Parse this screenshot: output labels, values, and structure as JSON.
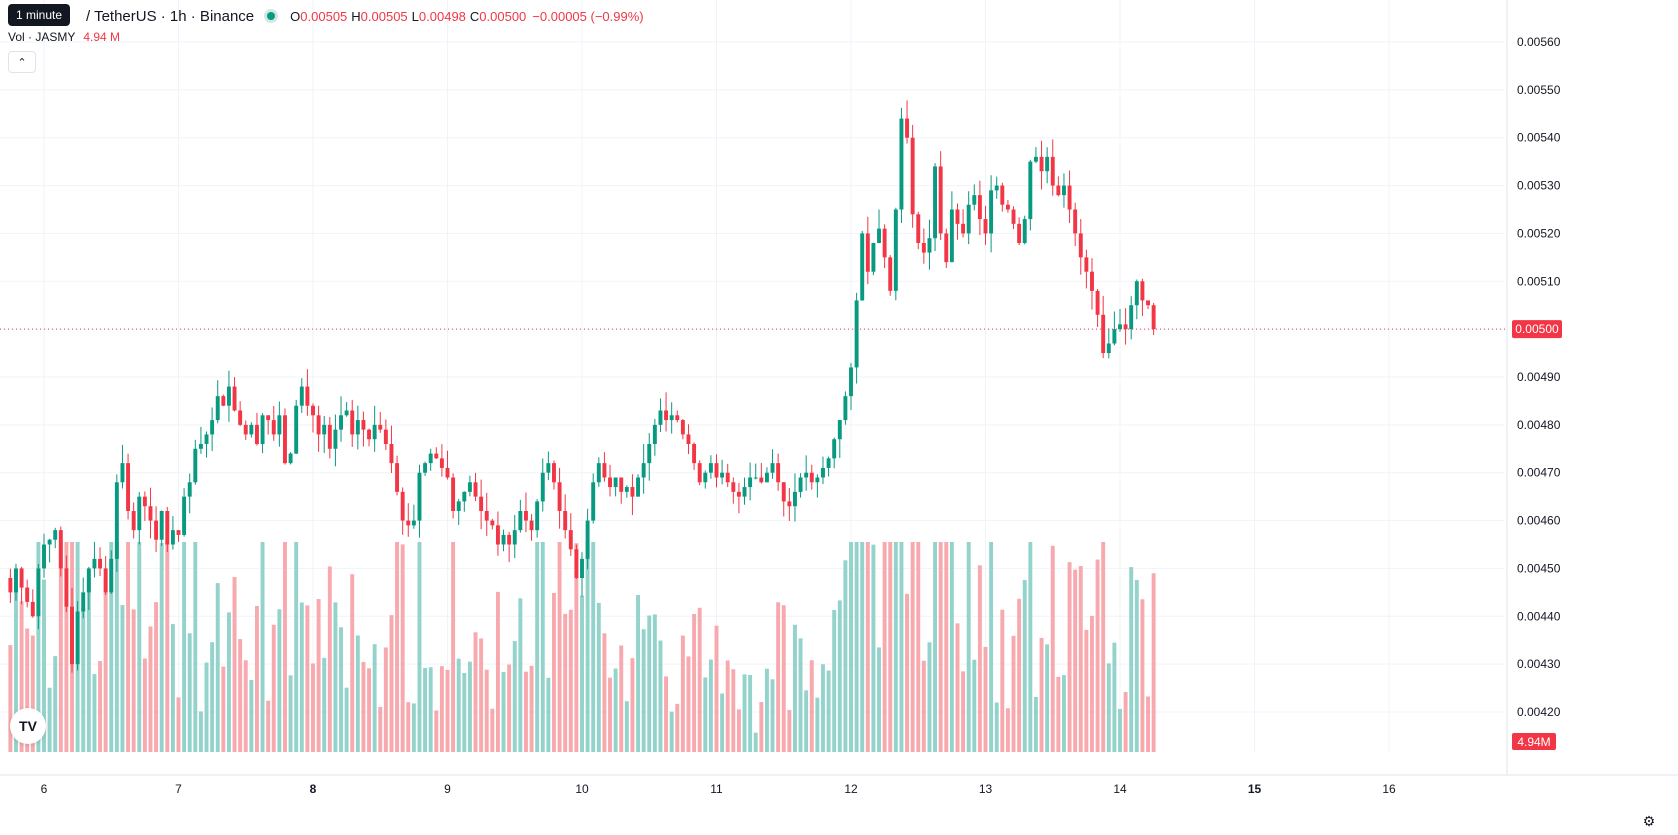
{
  "header": {
    "tooltip": "1 minute",
    "symbol": "/ TetherUS · 1h · Binance",
    "ohlc": {
      "o_label": "O",
      "o": "0.00505",
      "h_label": "H",
      "h": "0.00505",
      "l_label": "L",
      "l": "0.00498",
      "c_label": "C",
      "c": "0.00500"
    },
    "change": "−0.00005 (−0.99%)"
  },
  "volume_legend": {
    "label": "Vol · JASMY",
    "value": "4.94 M"
  },
  "colors": {
    "up": "#089981",
    "down": "#F23645",
    "up_vol": "#94d3cb",
    "down_vol": "#f7a9ae",
    "grid": "#f0f3fa",
    "axis_text": "#131722"
  },
  "icons": {
    "collapse": "chevron-up-icon",
    "logo": "tradingview-logo-icon",
    "settings": "settings-gear-icon"
  },
  "chart_data": {
    "type": "candlestick",
    "interval": "1h",
    "y_axis": {
      "side": "right",
      "min": 0.00415,
      "max": 0.00565,
      "ticks": [
        "0.00420",
        "0.00430",
        "0.00440",
        "0.00450",
        "0.00460",
        "0.00470",
        "0.00480",
        "0.00490",
        "0.00500",
        "0.00510",
        "0.00520",
        "0.00530",
        "0.00540",
        "0.00550",
        "0.00560"
      ]
    },
    "x_axis": {
      "start_day": 5.75,
      "end_day": 16.8,
      "ticks": [
        {
          "label": "6",
          "day": 6
        },
        {
          "label": "7",
          "day": 7
        },
        {
          "label": "8",
          "day": 8,
          "bold": true
        },
        {
          "label": "9",
          "day": 9
        },
        {
          "label": "10",
          "day": 10
        },
        {
          "label": "11",
          "day": 11
        },
        {
          "label": "12",
          "day": 12
        },
        {
          "label": "13",
          "day": 13
        },
        {
          "label": "14",
          "day": 14
        },
        {
          "label": "15",
          "day": 15,
          "bold": true
        },
        {
          "label": "16",
          "day": 16
        }
      ]
    },
    "last_price": {
      "value": 0.005,
      "label": "0.00500"
    },
    "last_volume_label": "4.94M",
    "first_candle_day": 5.75,
    "candles_per_day": 24,
    "close_path": [
      0.00445,
      0.0045,
      0.00446,
      0.00443,
      0.0044,
      0.0045,
      0.00455,
      0.00456,
      0.00458,
      0.0045,
      0.00442,
      0.0043,
      0.00441,
      0.00445,
      0.0045,
      0.00452,
      0.0045,
      0.00445,
      0.00452,
      0.00468,
      0.00472,
      0.00462,
      0.00458,
      0.00465,
      0.00463,
      0.0046,
      0.00456,
      0.00462,
      0.00455,
      0.00458,
      0.00457,
      0.00465,
      0.00468,
      0.00475,
      0.00476,
      0.00478,
      0.00481,
      0.00486,
      0.00484,
      0.00488,
      0.00483,
      0.0048,
      0.00478,
      0.0048,
      0.00476,
      0.00482,
      0.00481,
      0.00478,
      0.00482,
      0.00472,
      0.00474,
      0.00484,
      0.00488,
      0.00484,
      0.00482,
      0.00478,
      0.0048,
      0.00475,
      0.00479,
      0.00482,
      0.00483,
      0.00478,
      0.00481,
      0.00479,
      0.00477,
      0.0048,
      0.00479,
      0.00476,
      0.00472,
      0.00466,
      0.0046,
      0.00459,
      0.0046,
      0.0047,
      0.00472,
      0.00474,
      0.00473,
      0.00471,
      0.00469,
      0.00462,
      0.00464,
      0.00466,
      0.00468,
      0.00465,
      0.00462,
      0.0046,
      0.00459,
      0.00455,
      0.00457,
      0.00455,
      0.00458,
      0.00462,
      0.0046,
      0.00458,
      0.00464,
      0.0047,
      0.00472,
      0.00468,
      0.00462,
      0.00458,
      0.00454,
      0.00448,
      0.00452,
      0.0046,
      0.00468,
      0.00472,
      0.00469,
      0.00467,
      0.00469,
      0.00466,
      0.00467,
      0.00465,
      0.00469,
      0.00472,
      0.00476,
      0.0048,
      0.00483,
      0.00481,
      0.00482,
      0.00481,
      0.00478,
      0.00476,
      0.00472,
      0.00468,
      0.0047,
      0.00472,
      0.00469,
      0.0047,
      0.00468,
      0.00466,
      0.00465,
      0.00467,
      0.00469,
      0.00469,
      0.00468,
      0.0047,
      0.00472,
      0.00468,
      0.00464,
      0.00463,
      0.00466,
      0.00469,
      0.0047,
      0.00468,
      0.00469,
      0.00471,
      0.00473,
      0.00477,
      0.00481,
      0.00486,
      0.00492,
      0.00506,
      0.0052,
      0.00512,
      0.00518,
      0.00521,
      0.00515,
      0.00508,
      0.00525,
      0.00544,
      0.0054,
      0.00524,
      0.00518,
      0.00516,
      0.00519,
      0.00534,
      0.0052,
      0.00514,
      0.00525,
      0.00522,
      0.0052,
      0.00526,
      0.00528,
      0.00523,
      0.0052,
      0.00529,
      0.0053,
      0.00526,
      0.00525,
      0.00522,
      0.00518,
      0.00523,
      0.00535,
      0.00536,
      0.00533,
      0.00536,
      0.0053,
      0.00528,
      0.0053,
      0.00525,
      0.0052,
      0.00515,
      0.00512,
      0.00508,
      0.00503,
      0.00495,
      0.00497,
      0.005,
      0.00501,
      0.005,
      0.00505,
      0.0051,
      0.00506,
      0.00505,
      0.005
    ]
  }
}
